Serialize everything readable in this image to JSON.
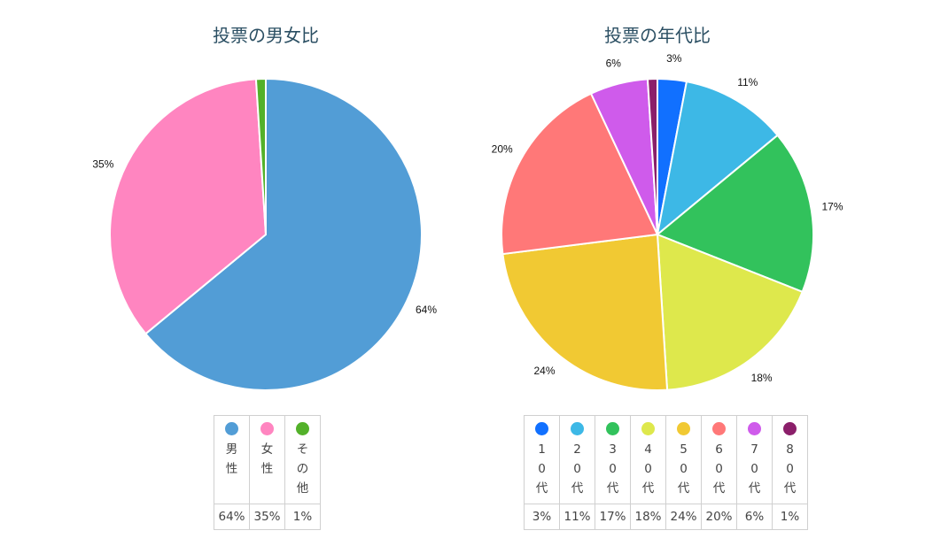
{
  "chart_data": [
    {
      "type": "pie",
      "title": "投票の男女比",
      "slices": [
        {
          "label": "男性",
          "value": 64,
          "display": "64%",
          "color": "#529DD6"
        },
        {
          "label": "女性",
          "value": 35,
          "display": "35%",
          "color": "#FF85C0"
        },
        {
          "label": "その他",
          "value": 1,
          "display": "1%",
          "color": "#53B12A"
        }
      ]
    },
    {
      "type": "pie",
      "title": "投票の年代比",
      "slices": [
        {
          "label": "10代",
          "value": 3,
          "display": "3%",
          "color": "#1170FF"
        },
        {
          "label": "20代",
          "value": 11,
          "display": "11%",
          "color": "#3DB8E6"
        },
        {
          "label": "30代",
          "value": 17,
          "display": "17%",
          "color": "#32C25C"
        },
        {
          "label": "40代",
          "value": 18,
          "display": "18%",
          "color": "#DEE84C"
        },
        {
          "label": "50代",
          "value": 24,
          "display": "24%",
          "color": "#F1C933"
        },
        {
          "label": "60代",
          "value": 20,
          "display": "20%",
          "color": "#FF7878"
        },
        {
          "label": "70代",
          "value": 6,
          "display": "6%",
          "color": "#CF5BEB"
        },
        {
          "label": "80代",
          "value": 1,
          "display": "1%",
          "color": "#8B1F6A"
        }
      ]
    }
  ]
}
